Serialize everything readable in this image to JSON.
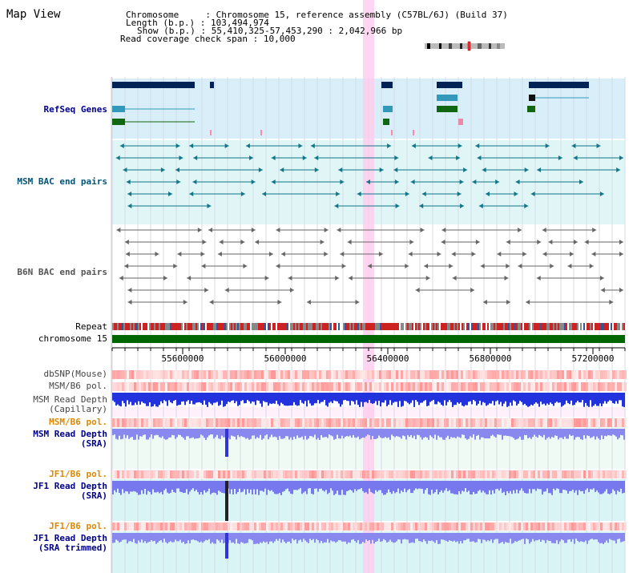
{
  "view_title": "Map View",
  "info": {
    "chromosome_label": "Chromosome",
    "chromosome_value": "Chromosome 15, reference assembly (C57BL/6J) (Build 37)",
    "length_label": "Length (b.p.)",
    "length_value": "103,494,974",
    "show_label": "Show (b.p.)",
    "show_value": "55,410,325-57,453,290 : 2,042,966 bp",
    "coverage_label": "Read coverage check span",
    "coverage_value": "10,000"
  },
  "tracks": {
    "refseq": "RefSeq Genes",
    "msm_bac": "MSM BAC end pairs",
    "b6n_bac": "B6N BAC end pairs",
    "repeat": "Repeat",
    "chromosome": "chromosome 15",
    "dbsnp": "dbSNP(Mouse)",
    "msm_b6_pol_1": "MSM/B6 pol.",
    "msm_read_depth_cap_1": "MSM Read Depth",
    "msm_read_depth_cap_2": "(Capillary)",
    "msm_b6_pol_2": "MSM/B6 pol.",
    "msm_read_depth_sra_1": "MSM Read Depth",
    "msm_read_depth_sra_2": "(SRA)",
    "jf1_b6_pol_1": "JF1/B6 pol.",
    "jf1_read_depth_sra_1": "JF1 Read Depth",
    "jf1_read_depth_sra_2": "(SRA)",
    "jf1_b6_pol_2": "JF1/B6 pol.",
    "jf1_read_depth_trim_1": "JF1 Read Depth",
    "jf1_read_depth_trim_2": "(SRA trimmed)"
  },
  "axis": {
    "ticks": [
      "55600000",
      "56000000",
      "56400000",
      "56800000",
      "57200000"
    ]
  },
  "colors": {
    "refseq_bg": "#d8eef8",
    "msm_bac_bg": "#e0f6f6",
    "b6n_bg": "#ffffff",
    "gene_dark": "#002255",
    "gene_teal": "#3399bb",
    "gene_green": "#116611",
    "msm_bac_line": "#117788",
    "b6n_line": "#666666",
    "highlight": "#ffccee",
    "chromosome_bar": "#006600",
    "label_blue": "#000088",
    "label_cyan": "#005577",
    "label_gray": "#555555",
    "label_orange": "#dd8800"
  }
}
